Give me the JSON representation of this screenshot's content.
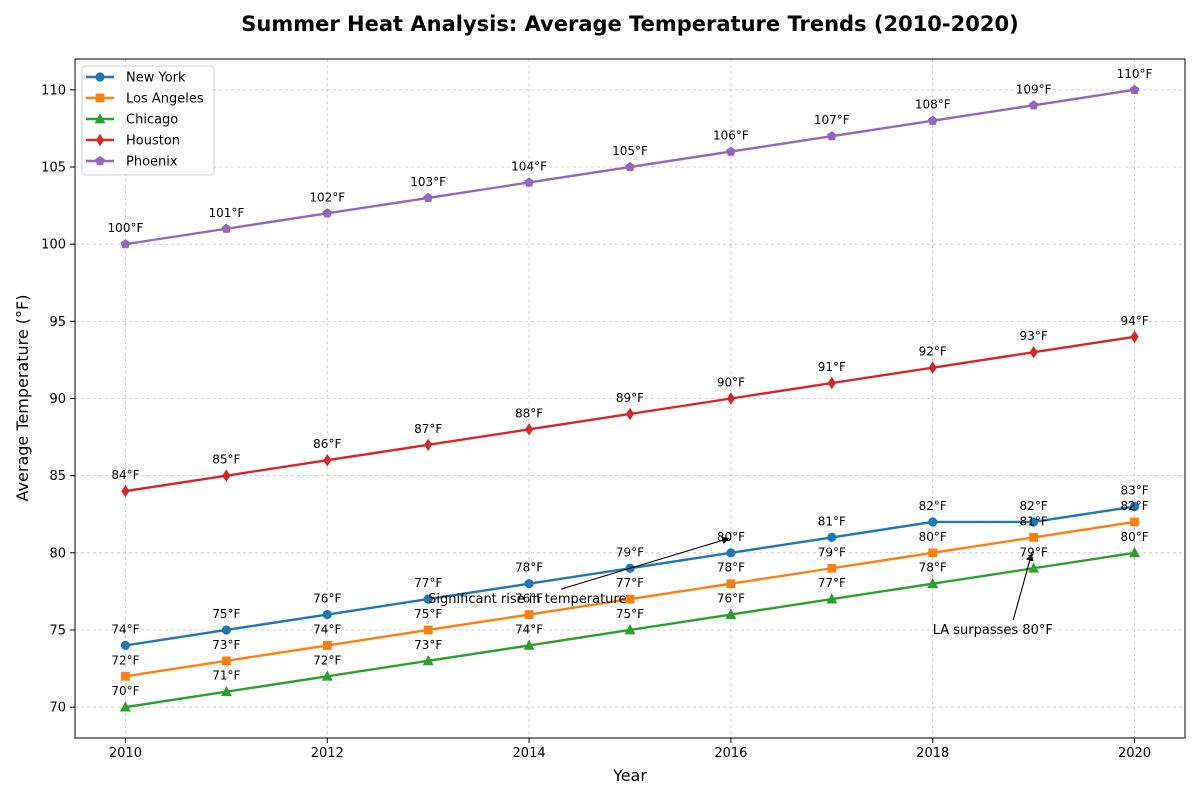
{
  "chart_data": {
    "type": "line",
    "title": "Summer Heat Analysis: Average Temperature Trends (2010-2020)",
    "xlabel": "Year",
    "ylabel": "Average Temperature (°F)",
    "x": [
      2010,
      2011,
      2012,
      2013,
      2014,
      2015,
      2016,
      2017,
      2018,
      2019,
      2020
    ],
    "xlim": [
      2009.5,
      2020.5
    ],
    "ylim": [
      68,
      112
    ],
    "xticks": [
      2010,
      2012,
      2014,
      2016,
      2018,
      2020
    ],
    "yticks": [
      70,
      75,
      80,
      85,
      90,
      95,
      100,
      105,
      110
    ],
    "grid": true,
    "legend_position": "top-left",
    "series": [
      {
        "name": "New York",
        "color": "#1f77b4",
        "marker": "circle",
        "values": [
          74,
          75,
          76,
          77,
          78,
          79,
          80,
          81,
          82,
          82,
          83
        ],
        "labels": [
          "74°F",
          "75°F",
          "76°F",
          "77°F",
          "78°F",
          "79°F",
          "80°F",
          "81°F",
          "82°F",
          "82°F",
          "83°F"
        ]
      },
      {
        "name": "Los Angeles",
        "color": "#ff7f0e",
        "marker": "square",
        "values": [
          72,
          73,
          74,
          75,
          76,
          77,
          78,
          79,
          80,
          81,
          82
        ],
        "labels": [
          "72°F",
          "73°F",
          "74°F",
          "75°F",
          "76°F",
          "77°F",
          "78°F",
          "79°F",
          "80°F",
          "81°F",
          "82°F"
        ]
      },
      {
        "name": "Chicago",
        "color": "#2ca02c",
        "marker": "triangle",
        "values": [
          70,
          71,
          72,
          73,
          74,
          75,
          76,
          77,
          78,
          79,
          80
        ],
        "labels": [
          "70°F",
          "71°F",
          "72°F",
          "73°F",
          "74°F",
          "75°F",
          "76°F",
          "77°F",
          "78°F",
          "79°F",
          "80°F"
        ]
      },
      {
        "name": "Houston",
        "color": "#d62728",
        "marker": "diamond",
        "values": [
          84,
          85,
          86,
          87,
          88,
          89,
          90,
          91,
          92,
          93,
          94
        ],
        "labels": [
          "84°F",
          "85°F",
          "86°F",
          "87°F",
          "88°F",
          "89°F",
          "90°F",
          "91°F",
          "92°F",
          "93°F",
          "94°F"
        ]
      },
      {
        "name": "Phoenix",
        "color": "#9467bd",
        "marker": "pentagon",
        "values": [
          100,
          101,
          102,
          103,
          104,
          105,
          106,
          107,
          108,
          109,
          110
        ],
        "labels": [
          "100°F",
          "101°F",
          "102°F",
          "103°F",
          "104°F",
          "105°F",
          "106°F",
          "107°F",
          "108°F",
          "109°F",
          "110°F"
        ]
      }
    ],
    "annotations": [
      {
        "text": "Significant rise in temperature",
        "point": [
          2016,
          81
        ],
        "text_at": [
          2013,
          77
        ]
      },
      {
        "text": "LA surpasses 80°F",
        "point": [
          2019,
          80
        ],
        "text_at": [
          2018,
          75
        ]
      }
    ]
  }
}
